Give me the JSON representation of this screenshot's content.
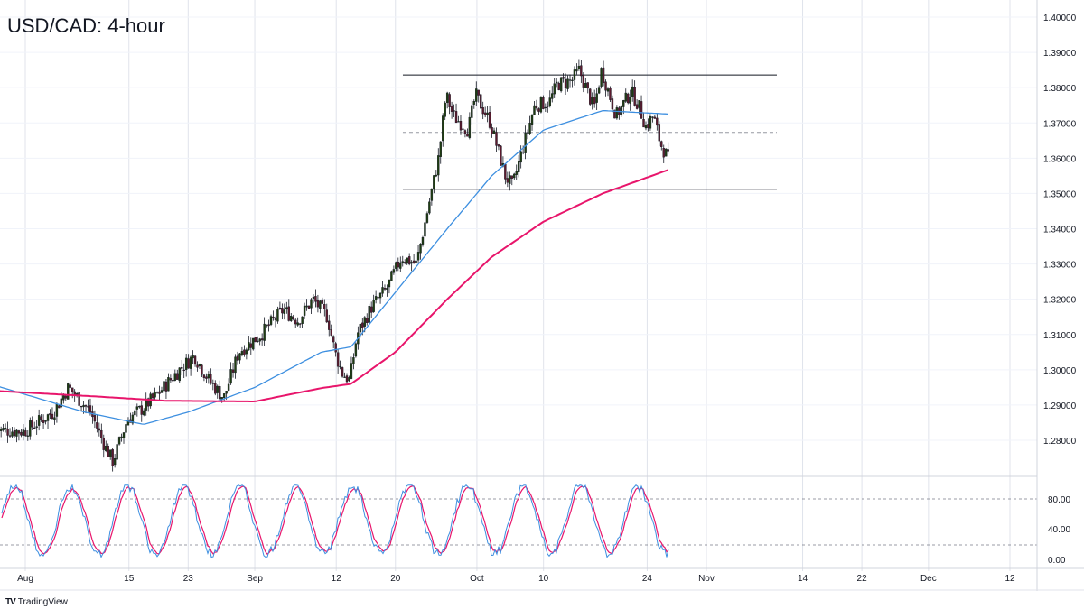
{
  "header": {
    "title": "USD/CAD: 4-hour"
  },
  "branding": {
    "logo_text": "TradingView",
    "logo_mark": "TV"
  },
  "colors": {
    "bull": "#1f3d12",
    "bear": "#5c1a2e",
    "ma_fast": "#3d8fe0",
    "ma_slow": "#e8156b",
    "stoch_k": "#3d8fe0",
    "stoch_d": "#e8156b",
    "levels": "#131722",
    "grid": "#e0e3eb"
  },
  "chart_data": [
    {
      "type": "candlestick",
      "title": "USD/CAD: 4-hour",
      "y_ticks": [
        "1.28000",
        "1.29000",
        "1.30000",
        "1.31000",
        "1.32000",
        "1.33000",
        "1.34000",
        "1.35000",
        "1.36000",
        "1.37000",
        "1.38000",
        "1.39000",
        "1.40000"
      ],
      "ylim": [
        1.2725,
        1.401
      ],
      "x_ticks": [
        "Aug",
        "15",
        "23",
        "Sep",
        "12",
        "20",
        "Oct",
        "10",
        "24",
        "Nov",
        "14",
        "22",
        "Dec",
        "12"
      ],
      "x_tick_dates": [
        "2022-08-01",
        "2022-08-15",
        "2022-08-23",
        "2022-09-01",
        "2022-09-12",
        "2022-09-20",
        "2022-10-01",
        "2022-10-10",
        "2022-10-24",
        "2022-11-01",
        "2022-11-14",
        "2022-11-22",
        "2022-12-01",
        "2022-12-12"
      ],
      "anchors": [
        [
          "2022-07-28",
          1.283
        ],
        [
          "2022-08-01",
          1.2825
        ],
        [
          "2022-08-05",
          1.288
        ],
        [
          "2022-08-07",
          1.295
        ],
        [
          "2022-08-10",
          1.288
        ],
        [
          "2022-08-12",
          1.278
        ],
        [
          "2022-08-13",
          1.274
        ],
        [
          "2022-08-15",
          1.286
        ],
        [
          "2022-08-17",
          1.289
        ],
        [
          "2022-08-19",
          1.293
        ],
        [
          "2022-08-22",
          1.3
        ],
        [
          "2022-08-24",
          1.304
        ],
        [
          "2022-08-26",
          1.297
        ],
        [
          "2022-08-28",
          1.292
        ],
        [
          "2022-08-30",
          1.305
        ],
        [
          "2022-09-02",
          1.31
        ],
        [
          "2022-09-05",
          1.317
        ],
        [
          "2022-09-07",
          1.314
        ],
        [
          "2022-09-09",
          1.32
        ],
        [
          "2022-09-11",
          1.315
        ],
        [
          "2022-09-12",
          1.305
        ],
        [
          "2022-09-13",
          1.299
        ],
        [
          "2022-09-14",
          1.297
        ],
        [
          "2022-09-15",
          1.31
        ],
        [
          "2022-09-17",
          1.318
        ],
        [
          "2022-09-19",
          1.323
        ],
        [
          "2022-09-21",
          1.332
        ],
        [
          "2022-09-23",
          1.33
        ],
        [
          "2022-09-24",
          1.34
        ],
        [
          "2022-09-25",
          1.35
        ],
        [
          "2022-09-26",
          1.36
        ],
        [
          "2022-09-27",
          1.378
        ],
        [
          "2022-09-28",
          1.372
        ],
        [
          "2022-09-30",
          1.368
        ],
        [
          "2022-10-01",
          1.378
        ],
        [
          "2022-10-03",
          1.37
        ],
        [
          "2022-10-05",
          1.355
        ],
        [
          "2022-10-06",
          1.352
        ],
        [
          "2022-10-07",
          1.36
        ],
        [
          "2022-10-09",
          1.375
        ],
        [
          "2022-10-11",
          1.376
        ],
        [
          "2022-10-12",
          1.381
        ],
        [
          "2022-10-14",
          1.382
        ],
        [
          "2022-10-15",
          1.385
        ],
        [
          "2022-10-17",
          1.374
        ],
        [
          "2022-10-18",
          1.385
        ],
        [
          "2022-10-20",
          1.372
        ],
        [
          "2022-10-22",
          1.379
        ],
        [
          "2022-10-23",
          1.375
        ],
        [
          "2022-10-24",
          1.369
        ],
        [
          "2022-10-25",
          1.372
        ],
        [
          "2022-10-26",
          1.364
        ],
        [
          "2022-10-27",
          1.36
        ]
      ],
      "levels": [
        1.3836,
        1.3673,
        1.3512
      ],
      "moving_averages": [
        {
          "role": "fast",
          "anchors": [
            [
              "2022-07-28",
              1.2955
            ],
            [
              "2022-08-09",
              1.288
            ],
            [
              "2022-08-17",
              1.2845
            ],
            [
              "2022-08-23",
              1.288
            ],
            [
              "2022-09-01",
              1.295
            ],
            [
              "2022-09-10",
              1.305
            ],
            [
              "2022-09-14",
              1.3065
            ],
            [
              "2022-09-20",
              1.322
            ],
            [
              "2022-09-27",
              1.34
            ],
            [
              "2022-10-03",
              1.355
            ],
            [
              "2022-10-10",
              1.368
            ],
            [
              "2022-10-18",
              1.3735
            ],
            [
              "2022-10-27",
              1.3725
            ]
          ]
        },
        {
          "role": "slow",
          "anchors": [
            [
              "2022-07-28",
              1.294
            ],
            [
              "2022-08-10",
              1.2925
            ],
            [
              "2022-08-20",
              1.2912
            ],
            [
              "2022-09-01",
              1.291
            ],
            [
              "2022-09-10",
              1.2948
            ],
            [
              "2022-09-14",
              1.296
            ],
            [
              "2022-09-20",
              1.305
            ],
            [
              "2022-09-27",
              1.32
            ],
            [
              "2022-10-03",
              1.332
            ],
            [
              "2022-10-10",
              1.342
            ],
            [
              "2022-10-18",
              1.35
            ],
            [
              "2022-10-27",
              1.3568
            ]
          ]
        }
      ]
    },
    {
      "type": "line",
      "indicator": "stochastic",
      "y_ticks": [
        "80.00",
        "40.00",
        "0.00"
      ],
      "ylim": [
        0,
        100
      ],
      "levels": [
        80,
        20
      ]
    }
  ]
}
